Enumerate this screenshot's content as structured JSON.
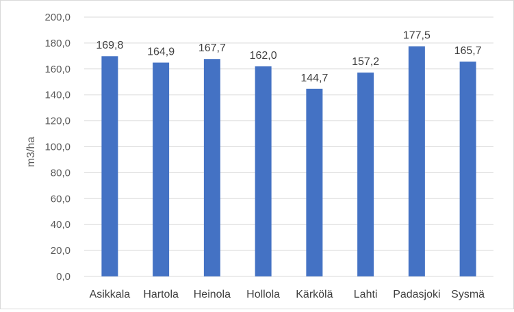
{
  "chart_data": {
    "type": "bar",
    "ylabel": "m3/ha",
    "ylim": [
      0,
      200
    ],
    "ytick_step": 20,
    "ytick_labels": [
      "0,0",
      "20,0",
      "40,0",
      "60,0",
      "80,0",
      "100,0",
      "120,0",
      "140,0",
      "160,0",
      "180,0",
      "200,0"
    ],
    "grid": true,
    "legend": "none",
    "categories": [
      "Asikkala",
      "Hartola",
      "Heinola",
      "Hollola",
      "Kärkölä",
      "Lahti",
      "Padasjoki",
      "Sysmä"
    ],
    "values": [
      169.8,
      164.9,
      167.7,
      162.0,
      144.7,
      157.2,
      177.5,
      165.7
    ],
    "value_labels": [
      "169,8",
      "164,9",
      "167,7",
      "162,0",
      "144,7",
      "157,2",
      "177,5",
      "165,7"
    ],
    "colors": {
      "bar": "#4472c4",
      "grid": "#d9d9d9"
    }
  }
}
